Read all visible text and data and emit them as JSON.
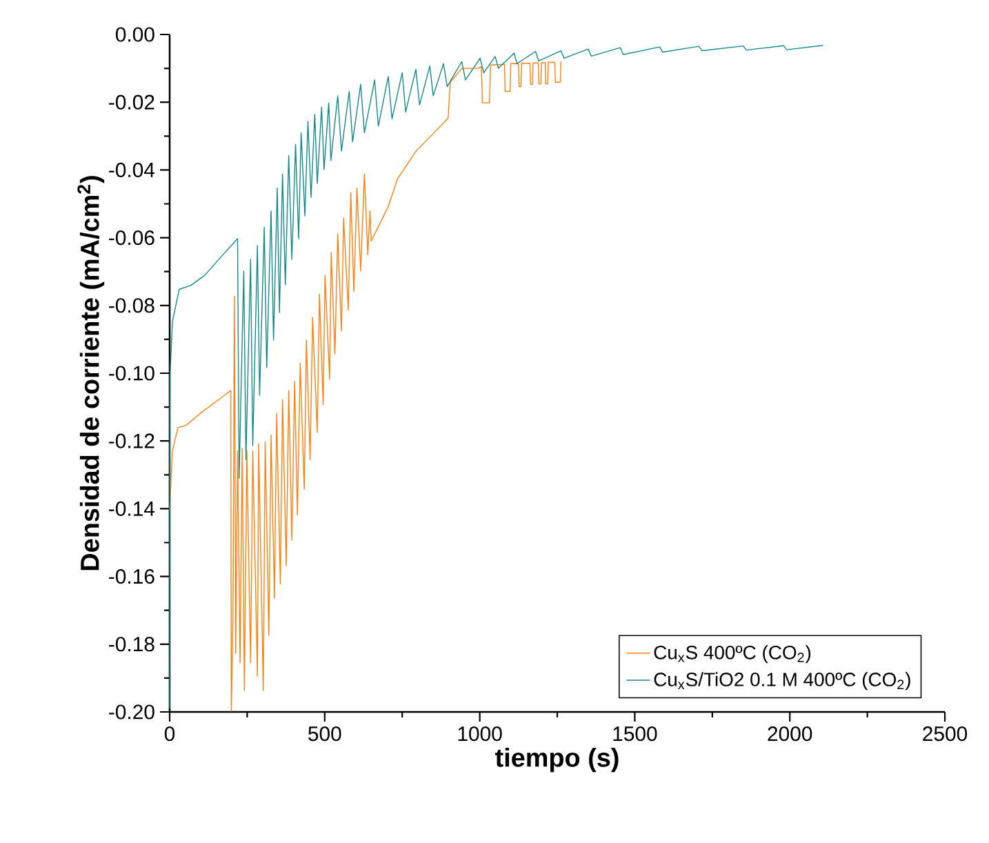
{
  "chart_data": {
    "type": "line",
    "xlabel": "tiempo (s)",
    "ylabel": "Densidad de corriente (mA/cm$^{2}$)",
    "xlim": [
      0,
      2500
    ],
    "xticks": [
      0,
      500,
      1000,
      1500,
      2000,
      2500
    ],
    "ylim": [
      -0.2,
      0.0
    ],
    "yticks": [
      {
        "value": -0.2,
        "label": "-0.20"
      },
      {
        "value": -0.18,
        "label": "-0.18"
      },
      {
        "value": -0.16,
        "label": "-0.16"
      },
      {
        "value": -0.14,
        "label": "-0.14"
      },
      {
        "value": -0.12,
        "label": "-0.12"
      },
      {
        "value": -0.1,
        "label": "-0.10"
      },
      {
        "value": -0.08,
        "label": "-0.08"
      },
      {
        "value": -0.06,
        "label": "-0.06"
      },
      {
        "value": -0.04,
        "label": "-0.04"
      },
      {
        "value": -0.02,
        "label": "-0.02"
      },
      {
        "value": 0.0,
        "label": "0.00"
      }
    ],
    "legend": "bottom right",
    "line_style": "solid",
    "marker": "none",
    "series": [
      {
        "name": "Cu$_{x}$S 400ºC (CO$_{2}$)",
        "color": "#ff7f0e",
        "x": [
          0,
          9,
          27,
          53,
          98,
          157,
          197,
          199,
          204,
          209,
          213,
          219,
          227,
          234,
          241,
          249,
          261,
          268,
          283,
          287,
          302,
          308,
          320,
          327,
          338,
          345,
          357,
          364,
          376,
          384,
          394,
          403,
          412,
          421,
          434,
          441,
          453,
          461,
          476,
          483,
          495,
          501,
          516,
          521,
          533,
          542,
          554,
          561,
          576,
          584,
          594,
          604,
          616,
          628,
          639,
          646,
          650,
          705,
          735,
          794,
          853,
          898,
          905,
          942,
          994,
          1005,
          1009,
          1031,
          1035,
          1080,
          1082,
          1098,
          1100,
          1125,
          1127,
          1133,
          1135,
          1162,
          1164,
          1170,
          1172,
          1189,
          1191,
          1197,
          1199,
          1211,
          1213,
          1219,
          1221,
          1242,
          1244,
          1260,
          1262
        ],
        "values": [
          -0.1404,
          -0.1228,
          -0.116,
          -0.1154,
          -0.1119,
          -0.1079,
          -0.1051,
          -0.1998,
          -0.1732,
          -0.0773,
          -0.1827,
          -0.1229,
          -0.1855,
          -0.1222,
          -0.1937,
          -0.1229,
          -0.1855,
          -0.1229,
          -0.1894,
          -0.1208,
          -0.1937,
          -0.1202,
          -0.1774,
          -0.1182,
          -0.1665,
          -0.1119,
          -0.1622,
          -0.1078,
          -0.1568,
          -0.1051,
          -0.1493,
          -0.1024,
          -0.1418,
          -0.097,
          -0.1343,
          -0.0902,
          -0.1255,
          -0.0835,
          -0.1175,
          -0.0766,
          -0.1093,
          -0.0711,
          -0.1018,
          -0.0643,
          -0.0943,
          -0.0589,
          -0.0875,
          -0.0542,
          -0.0814,
          -0.0467,
          -0.0759,
          -0.0453,
          -0.0698,
          -0.0412,
          -0.0651,
          -0.0521,
          -0.061,
          -0.0508,
          -0.0426,
          -0.0345,
          -0.029,
          -0.0247,
          -0.0141,
          -0.01,
          -0.01,
          -0.0095,
          -0.0202,
          -0.0202,
          -0.009,
          -0.0088,
          -0.0168,
          -0.0168,
          -0.0086,
          -0.0086,
          -0.0154,
          -0.0154,
          -0.0085,
          -0.0085,
          -0.0148,
          -0.0148,
          -0.0084,
          -0.0084,
          -0.0146,
          -0.0146,
          -0.0083,
          -0.0083,
          -0.0146,
          -0.0146,
          -0.0082,
          -0.0082,
          -0.0141,
          -0.0141,
          -0.008
        ]
      },
      {
        "name": "Cu$_{x}$S/TiO2 0.1 M 400ºC (CO$_{2}$)",
        "color": "#138a8a",
        "x": [
          0,
          1,
          9,
          31,
          68,
          113,
          172,
          219,
          224,
          239,
          246,
          261,
          268,
          283,
          290,
          305,
          313,
          327,
          335,
          347,
          354,
          364,
          373,
          384,
          394,
          406,
          416,
          424,
          436,
          446,
          456,
          468,
          476,
          490,
          498,
          513,
          520,
          542,
          554,
          579,
          590,
          616,
          628,
          661,
          673,
          705,
          717,
          750,
          761,
          794,
          806,
          839,
          850,
          883,
          895,
          942,
          954,
          1001,
          1013,
          1050,
          1060,
          1111,
          1120,
          1180,
          1190,
          1262,
          1272,
          1350,
          1360,
          1453,
          1463,
          1580,
          1590,
          1707,
          1717,
          1850,
          1860,
          1980,
          1990,
          2107
        ],
        "values": [
          -0.199,
          -0.101,
          -0.0847,
          -0.0752,
          -0.0741,
          -0.0711,
          -0.065,
          -0.0603,
          -0.131,
          -0.0698,
          -0.1255,
          -0.0664,
          -0.1214,
          -0.0623,
          -0.1065,
          -0.0569,
          -0.0983,
          -0.0521,
          -0.0902,
          -0.0453,
          -0.0821,
          -0.0412,
          -0.0739,
          -0.0358,
          -0.0664,
          -0.0324,
          -0.0603,
          -0.029,
          -0.0535,
          -0.0256,
          -0.0481,
          -0.0236,
          -0.044,
          -0.0215,
          -0.0399,
          -0.0202,
          -0.0372,
          -0.0181,
          -0.0344,
          -0.0168,
          -0.0317,
          -0.0147,
          -0.029,
          -0.0134,
          -0.027,
          -0.0124,
          -0.0249,
          -0.0113,
          -0.0229,
          -0.0103,
          -0.0208,
          -0.0093,
          -0.0181,
          -0.0086,
          -0.0154,
          -0.008,
          -0.0134,
          -0.007,
          -0.0113,
          -0.0065,
          -0.01,
          -0.0055,
          -0.0086,
          -0.005,
          -0.0078,
          -0.0048,
          -0.007,
          -0.0043,
          -0.0064,
          -0.0039,
          -0.0059,
          -0.0037,
          -0.0052,
          -0.0035,
          -0.0048,
          -0.0034,
          -0.0046,
          -0.0033,
          -0.0045,
          -0.0032
        ]
      }
    ]
  }
}
